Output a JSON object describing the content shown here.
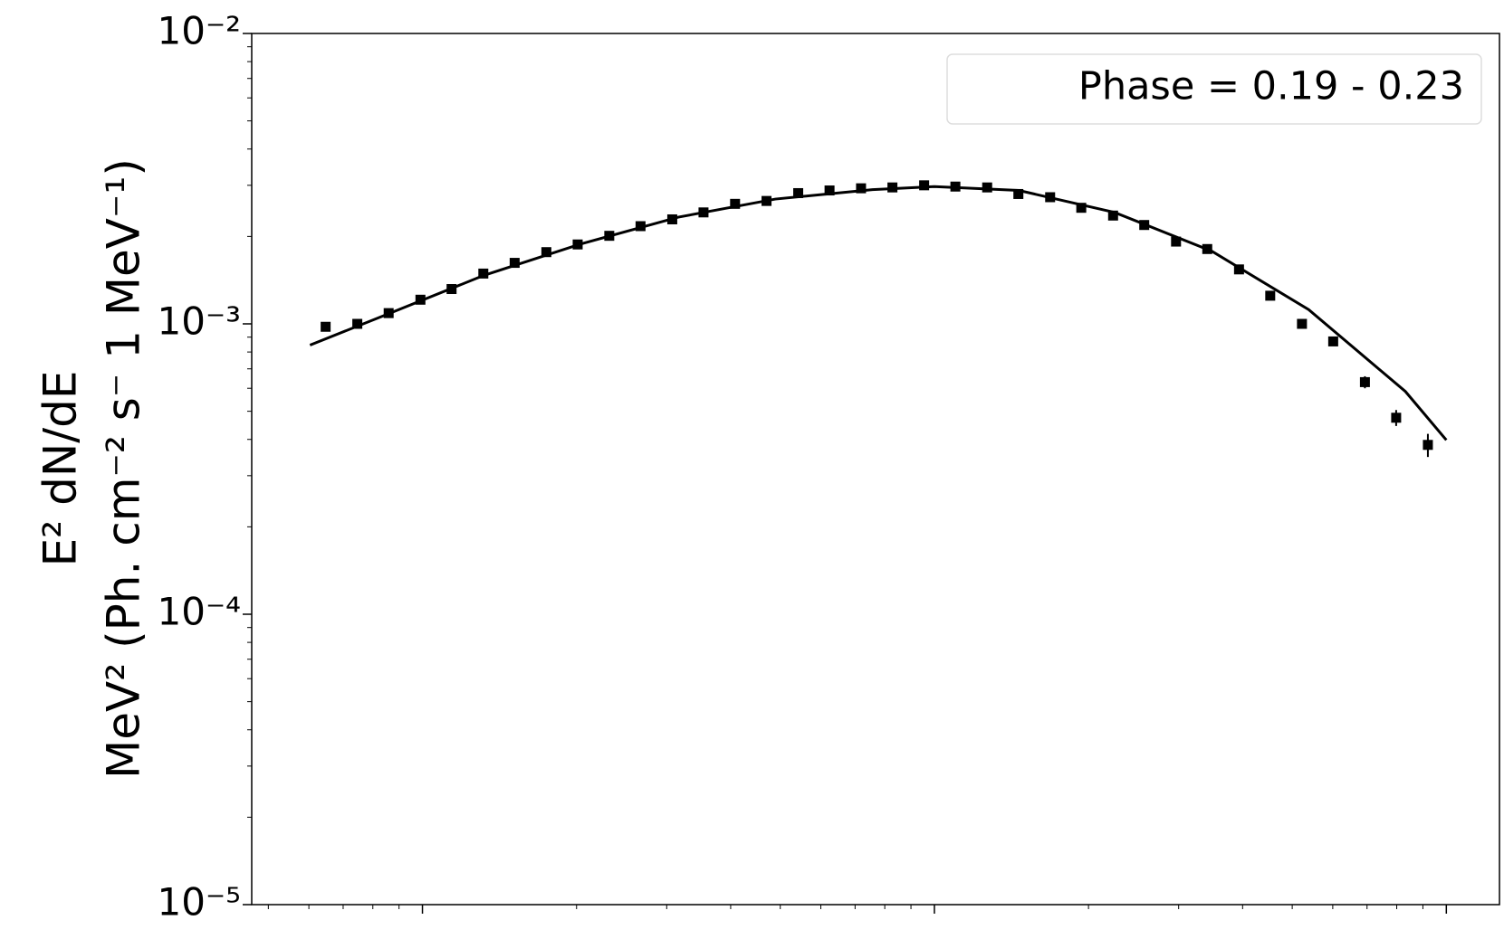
{
  "chart_data": {
    "type": "scatter",
    "y_label_lines": [
      "E² dN/dE",
      "MeV² (Ph. cm⁻² s⁻ 1 MeV⁻¹)"
    ],
    "legend_text": "Phase = 0.19 - 0.23",
    "log_x": true,
    "log_y": true,
    "xlim": [
      46.4,
      12700
    ],
    "xticks": [
      100,
      1000,
      10000
    ],
    "ylim": [
      1e-05,
      0.01
    ],
    "yticks": [
      {
        "value": 0.01,
        "label": "10⁻²"
      },
      {
        "value": 0.001,
        "label": "10⁻³"
      },
      {
        "value": 0.0001,
        "label": "10⁻⁴"
      },
      {
        "value": 1e-05,
        "label": "10⁻⁵"
      }
    ],
    "points": {
      "color": "#000000",
      "x": [
        64.7,
        74.6,
        85.9,
        99.1,
        114,
        131.5,
        151.4,
        174.6,
        201,
        231.7,
        266.7,
        307.6,
        354,
        408,
        470,
        542,
        624,
        719,
        828,
        955,
        1099,
        1268,
        1459,
        1683,
        1936,
        2234,
        2570,
        2965,
        3412,
        3936,
        4529,
        5224,
        6012,
        6934,
        7980,
        9204
      ],
      "values": [
        0.000977,
        0.001,
        0.001089,
        0.001211,
        0.001318,
        0.00149,
        0.001622,
        0.001766,
        0.001877,
        0.00201,
        0.00217,
        0.00229,
        0.00242,
        0.00259,
        0.00265,
        0.00282,
        0.00288,
        0.00293,
        0.00295,
        0.003,
        0.00297,
        0.00295,
        0.0028,
        0.00273,
        0.00251,
        0.00236,
        0.00219,
        0.00192,
        0.00181,
        0.00154,
        0.00125,
        0.001,
        0.00087,
        0.00063,
        0.000475,
        0.000383
      ],
      "errors": [
        1e-05,
        1e-05,
        1e-05,
        1e-05,
        1e-05,
        1e-05,
        1e-05,
        1e-05,
        1e-05,
        1e-05,
        1e-05,
        1e-05,
        1e-05,
        1e-05,
        1e-05,
        1e-05,
        1e-05,
        1e-05,
        1e-05,
        1e-05,
        1e-05,
        1e-05,
        1e-05,
        1e-05,
        1e-05,
        1e-05,
        1e-05,
        2e-05,
        2e-05,
        2e-05,
        3e-05,
        3e-05,
        3e-05,
        3e-05,
        3e-05,
        3.5e-05
      ]
    },
    "model": {
      "color": "#000000",
      "x": [
        60.3,
        85.5,
        132,
        205,
        316,
        489,
        757,
        1000,
        1462,
        2249,
        3481,
        5383,
        8318,
        10000
      ],
      "values": [
        0.000845,
        0.00108,
        0.00147,
        0.00189,
        0.00233,
        0.00269,
        0.0029,
        0.00297,
        0.00288,
        0.00242,
        0.00178,
        0.00112,
        0.000585,
        0.000398
      ]
    }
  }
}
